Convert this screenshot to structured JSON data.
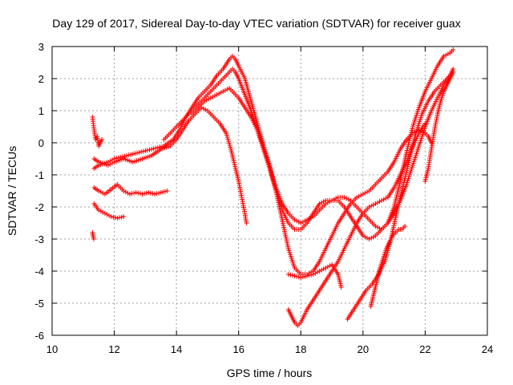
{
  "chart_data": {
    "type": "scatter",
    "title": "Day 129 of 2017, Sidereal Day-to-day VTEC variation (SDTVAR) for receiver guax",
    "xlabel": "GPS time / hours",
    "ylabel": "SDTVAR / TECUs",
    "xlim": [
      10,
      24
    ],
    "ylim": [
      -6,
      3
    ],
    "xticks": [
      10,
      12,
      14,
      16,
      18,
      20,
      22,
      24
    ],
    "yticks": [
      -6,
      -5,
      -4,
      -3,
      -2,
      -1,
      0,
      1,
      2,
      3
    ],
    "grid": true,
    "marker": "+",
    "color": "#ff0000",
    "series": [
      {
        "x": [
          11.3,
          11.35,
          11.4,
          11.45,
          11.5,
          11.6
        ],
        "y": [
          0.8,
          0.4,
          0.1,
          0.2,
          -0.1,
          0.1
        ]
      },
      {
        "x": [
          11.35,
          11.5,
          11.8,
          12.0,
          12.3,
          12.6,
          12.9,
          13.2,
          13.5,
          13.8,
          14.0,
          14.2,
          14.4,
          14.6,
          14.8,
          15.0,
          15.2,
          15.4,
          15.6,
          15.75,
          15.9,
          16.0,
          16.1,
          16.2,
          16.25
        ],
        "y": [
          -0.5,
          -0.6,
          -0.7,
          -0.6,
          -0.5,
          -0.6,
          -0.5,
          -0.4,
          -0.2,
          -0.1,
          0.1,
          0.4,
          0.7,
          0.9,
          1.1,
          1.0,
          0.8,
          0.6,
          0.3,
          -0.2,
          -0.8,
          -1.2,
          -1.7,
          -2.2,
          -2.5
        ]
      },
      {
        "x": [
          11.35,
          11.5,
          11.8,
          12.0,
          12.4,
          12.8,
          13.2,
          13.6,
          13.9,
          14.1,
          14.3,
          14.5,
          14.7,
          14.9,
          15.1,
          15.3,
          15.5,
          15.7,
          15.8,
          15.9,
          16.0,
          16.2,
          16.4,
          16.6,
          16.8,
          17.0,
          17.2,
          17.4,
          17.6,
          17.8,
          18.0,
          18.2,
          18.4,
          18.6,
          18.8,
          19.0,
          19.2,
          19.4,
          19.6,
          19.8,
          20.0,
          20.2,
          20.4,
          20.6,
          20.8,
          21.0,
          21.2,
          21.4,
          21.6,
          21.8,
          22.0,
          22.2,
          22.4,
          22.6,
          22.8,
          22.9
        ],
        "y": [
          -0.8,
          -0.7,
          -0.6,
          -0.5,
          -0.4,
          -0.3,
          -0.2,
          -0.1,
          0.1,
          0.4,
          0.8,
          1.1,
          1.4,
          1.6,
          1.8,
          2.1,
          2.3,
          2.6,
          2.7,
          2.6,
          2.4,
          2.0,
          1.3,
          0.6,
          -0.1,
          -0.8,
          -1.4,
          -1.9,
          -2.2,
          -2.4,
          -2.5,
          -2.4,
          -2.3,
          -2.1,
          -1.9,
          -1.8,
          -1.7,
          -1.7,
          -1.8,
          -2.0,
          -2.2,
          -2.4,
          -2.6,
          -2.7,
          -2.5,
          -2.0,
          -1.2,
          -0.3,
          0.5,
          1.1,
          1.6,
          2.0,
          2.4,
          2.7,
          2.8,
          2.9
        ]
      },
      {
        "x": [
          13.6,
          13.8,
          14.0,
          14.2,
          14.4,
          14.6,
          14.8,
          15.0,
          15.2,
          15.4,
          15.6,
          15.8,
          15.9,
          16.0,
          16.2,
          16.4,
          16.6,
          16.8,
          17.0,
          17.2,
          17.4,
          17.6,
          17.8,
          18.0,
          18.2,
          18.4,
          18.6,
          18.8,
          19.0,
          19.2,
          19.4,
          19.6,
          19.8,
          20.0,
          20.2,
          20.4,
          20.6,
          20.8,
          21.0,
          21.2,
          21.4,
          21.6,
          21.8,
          22.0,
          22.2,
          22.4,
          22.6,
          22.8,
          22.9
        ],
        "y": [
          0.1,
          0.3,
          0.5,
          0.7,
          0.9,
          1.1,
          1.3,
          1.5,
          1.7,
          1.9,
          2.1,
          2.3,
          2.2,
          2.0,
          1.5,
          1.0,
          0.4,
          -0.2,
          -0.8,
          -1.5,
          -2.1,
          -2.5,
          -2.7,
          -2.7,
          -2.5,
          -2.2,
          -1.9,
          -1.8,
          -1.8,
          -1.8,
          -2.0,
          -2.3,
          -2.6,
          -2.9,
          -3.0,
          -2.9,
          -2.7,
          -2.5,
          -2.2,
          -1.8,
          -1.3,
          -0.7,
          -0.1,
          0.5,
          1.0,
          1.4,
          1.8,
          2.1,
          2.3
        ]
      },
      {
        "x": [
          14.5,
          14.7,
          14.9,
          15.1,
          15.3,
          15.5,
          15.7,
          15.8,
          16.0,
          16.2,
          16.4,
          16.6,
          16.8,
          17.0,
          17.2,
          17.4,
          17.6,
          17.8,
          18.0,
          18.2,
          18.4,
          18.6,
          18.8,
          19.0,
          19.2,
          19.4,
          19.6,
          19.8,
          20.0,
          20.2,
          20.4,
          20.6,
          20.8,
          21.0,
          21.2,
          21.4,
          21.6,
          21.8,
          22.0,
          22.1,
          22.2
        ],
        "y": [
          0.9,
          1.1,
          1.3,
          1.4,
          1.5,
          1.6,
          1.7,
          1.6,
          1.4,
          1.1,
          0.8,
          0.4,
          -0.1,
          -0.7,
          -1.5,
          -2.4,
          -3.3,
          -3.9,
          -4.1,
          -4.1,
          -4.0,
          -3.7,
          -3.3,
          -2.9,
          -2.5,
          -2.2,
          -1.9,
          -1.7,
          -1.6,
          -1.5,
          -1.3,
          -1.1,
          -0.9,
          -0.6,
          -0.2,
          0.1,
          0.3,
          0.4,
          0.3,
          0.2,
          0.0
        ]
      },
      {
        "x": [
          17.6,
          17.7,
          17.8,
          17.9,
          18.0,
          18.2,
          18.4,
          18.6,
          18.8,
          19.0,
          19.2,
          19.4,
          19.6,
          19.8,
          20.0,
          20.2,
          20.4,
          20.6,
          20.8,
          21.0,
          21.2,
          21.4,
          21.6,
          21.8,
          22.0
        ],
        "y": [
          -5.2,
          -5.4,
          -5.6,
          -5.7,
          -5.6,
          -5.2,
          -4.9,
          -4.6,
          -4.3,
          -4.0,
          -3.7,
          -3.3,
          -2.9,
          -2.5,
          -2.2,
          -2.0,
          -1.9,
          -1.8,
          -1.7,
          -1.4,
          -1.0,
          -0.6,
          -0.1,
          0.3,
          0.6
        ]
      },
      {
        "x": [
          17.6,
          17.8,
          18.0,
          18.2,
          18.4,
          18.6,
          18.8,
          19.0,
          19.2,
          19.3
        ],
        "y": [
          -4.1,
          -4.15,
          -4.2,
          -4.15,
          -4.1,
          -4.0,
          -3.9,
          -3.8,
          -4.1,
          -4.5
        ]
      },
      {
        "x": [
          19.5,
          19.7,
          19.9,
          20.1,
          20.3,
          20.5,
          20.7,
          20.9,
          21.1,
          21.3,
          21.5,
          21.7,
          21.9,
          22.1,
          22.3,
          22.5,
          22.7,
          22.9
        ],
        "y": [
          -5.5,
          -5.2,
          -4.9,
          -4.6,
          -4.4,
          -4.1,
          -3.7,
          -3.0,
          -2.1,
          -1.3,
          -0.5,
          0.3,
          0.9,
          1.3,
          1.6,
          1.8,
          2.0,
          2.2
        ]
      },
      {
        "x": [
          20.25,
          20.35,
          20.45,
          20.55,
          20.65,
          20.75,
          20.85,
          20.95,
          21.05,
          21.15,
          21.25,
          21.35
        ],
        "y": [
          -5.1,
          -4.7,
          -4.3,
          -3.9,
          -3.6,
          -3.3,
          -3.1,
          -2.9,
          -2.8,
          -2.7,
          -2.7,
          -2.6
        ]
      },
      {
        "x": [
          22.0,
          22.1,
          22.2,
          22.3,
          22.4,
          22.5,
          22.6,
          22.7,
          22.8,
          22.9
        ],
        "y": [
          -1.2,
          -0.8,
          -0.2,
          0.4,
          0.9,
          1.3,
          1.6,
          1.8,
          2.0,
          2.2
        ]
      },
      {
        "x": [
          11.35,
          11.5,
          11.7,
          11.9,
          12.1,
          12.3
        ],
        "y": [
          -1.9,
          -2.1,
          -2.2,
          -2.3,
          -2.35,
          -2.3
        ]
      },
      {
        "x": [
          11.35,
          11.5,
          11.7,
          11.9,
          12.1,
          12.3,
          12.5,
          12.7,
          12.9,
          13.1,
          13.3,
          13.5,
          13.7
        ],
        "y": [
          -1.4,
          -1.5,
          -1.6,
          -1.45,
          -1.3,
          -1.5,
          -1.6,
          -1.55,
          -1.6,
          -1.55,
          -1.6,
          -1.55,
          -1.5
        ]
      },
      {
        "x": [
          11.3,
          11.32,
          11.34
        ],
        "y": [
          -2.8,
          -2.9,
          -3.0
        ]
      }
    ]
  }
}
